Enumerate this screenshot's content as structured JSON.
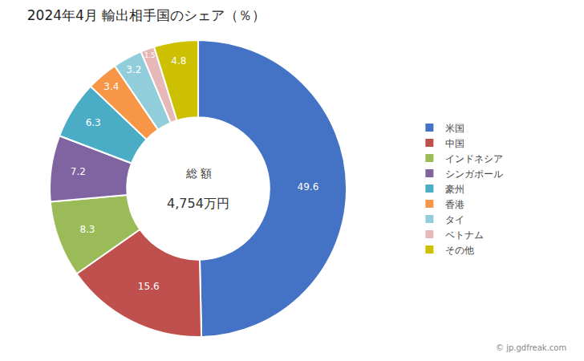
{
  "chart_data": {
    "type": "pie",
    "title": "2024年4月 輸出相手国のシェア（％）",
    "categories": [
      "米国",
      "中国",
      "インドネシア",
      "シンガポール",
      "豪州",
      "香港",
      "タイ",
      "ベトナム",
      "その他"
    ],
    "values": [
      49.6,
      15.6,
      8.3,
      7.2,
      6.3,
      3.4,
      3.2,
      1.5,
      4.8
    ],
    "colors": [
      "#4472C4",
      "#C0504D",
      "#9BBB59",
      "#8064A2",
      "#4BACC6",
      "#F79646",
      "#92CDDC",
      "#E6B9B8",
      "#CCC000"
    ],
    "data_labels": true,
    "legend": "right",
    "annotations": [
      "総 額",
      "4,754万円",
      "© jp.gdfreak.com"
    ]
  }
}
